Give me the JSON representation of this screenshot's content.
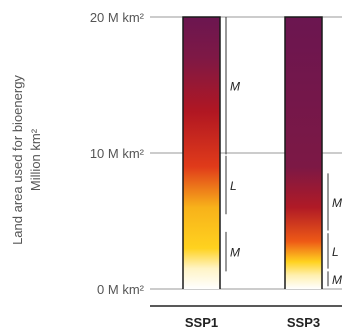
{
  "chart_data": {
    "type": "bar",
    "ylabel_lines": [
      "Land area used for bioenergy",
      "Million km²"
    ],
    "ylim": [
      0,
      20
    ],
    "yticks": [
      {
        "value": 0,
        "label": "0 M km²"
      },
      {
        "value": 10,
        "label": "10 M km²"
      },
      {
        "value": 20,
        "label": "20 M km²"
      }
    ],
    "grid": true,
    "categories": [
      "SSP1",
      "SSP3"
    ],
    "bars": [
      {
        "category": "SSP1",
        "value": 20,
        "gradient": [
          {
            "value": 0,
            "color": "#ffffff"
          },
          {
            "value": 1.5,
            "color": "#fff4c6"
          },
          {
            "value": 3,
            "color": "#ffd21f"
          },
          {
            "value": 6,
            "color": "#f8b21a"
          },
          {
            "value": 9,
            "color": "#e03b1a"
          },
          {
            "value": 13,
            "color": "#b11722"
          },
          {
            "value": 17,
            "color": "#7e1845"
          },
          {
            "value": 20,
            "color": "#6b1650"
          }
        ],
        "ranges": [
          {
            "label": "M",
            "from": 1.3,
            "to": 4.2
          },
          {
            "label": "L",
            "from": 5.5,
            "to": 9.8
          },
          {
            "label": "M",
            "from": 9.9,
            "to": 20
          }
        ]
      },
      {
        "category": "SSP3",
        "value": 20,
        "gradient": [
          {
            "value": 0,
            "color": "#ffffff"
          },
          {
            "value": 1.0,
            "color": "#fff0b0"
          },
          {
            "value": 2,
            "color": "#ffd21f"
          },
          {
            "value": 3.5,
            "color": "#ee5a16"
          },
          {
            "value": 6,
            "color": "#b01a26"
          },
          {
            "value": 9,
            "color": "#7c1845"
          },
          {
            "value": 20,
            "color": "#6b1650"
          }
        ],
        "ranges": [
          {
            "label": "M",
            "from": 0.2,
            "to": 1.3
          },
          {
            "label": "L",
            "from": 1.5,
            "to": 4.1
          },
          {
            "label": "M",
            "from": 4.3,
            "to": 8.5
          }
        ]
      }
    ]
  }
}
